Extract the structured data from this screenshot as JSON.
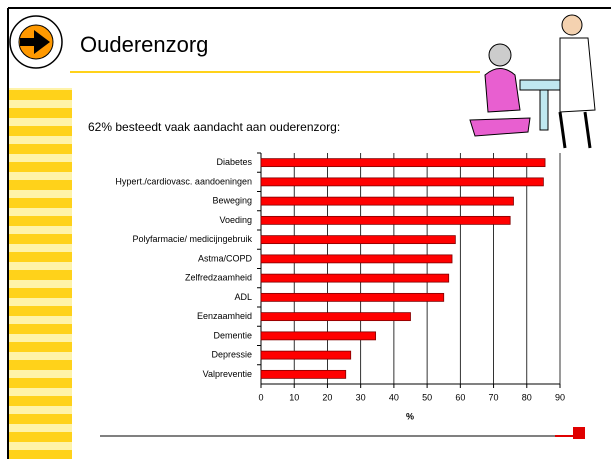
{
  "title": "Ouderenzorg",
  "chart_data": {
    "type": "bar",
    "horizontal": true,
    "title": "62% besteedt vaak aandacht aan ouderenzorg:",
    "categories": [
      "Diabetes",
      "Hypert./cardiovasc. aandoeningen",
      "Beweging",
      "Voeding",
      "Polyfarmacie/ medicijngebruik",
      "Astma/COPD",
      "Zelfredzaamheid",
      "ADL",
      "Eenzaamheid",
      "Dementie",
      "Depressie",
      "Valpreventie"
    ],
    "values": [
      85.5,
      85,
      76,
      75,
      58.5,
      57.5,
      56.5,
      55,
      45,
      34.5,
      27,
      25.5
    ],
    "color": "#ff0000",
    "xlabel": "%",
    "xlim": [
      0,
      90
    ],
    "xticks": [
      0,
      10,
      20,
      30,
      40,
      50,
      60,
      70,
      80,
      90
    ],
    "grid": true
  }
}
